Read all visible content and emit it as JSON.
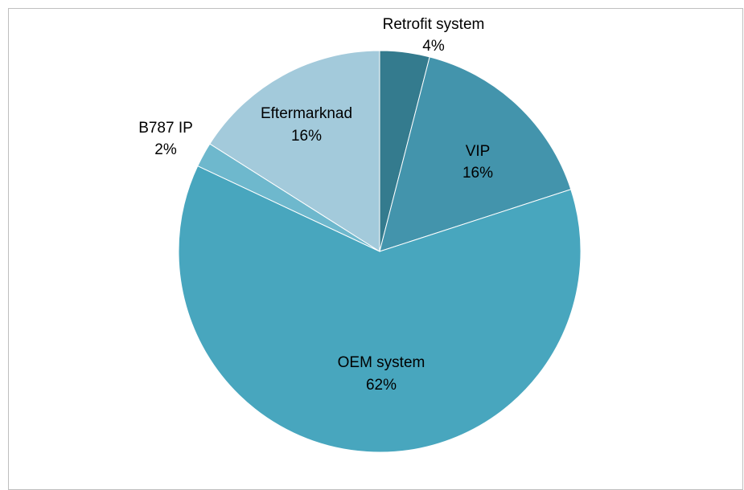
{
  "chart_data": {
    "type": "pie",
    "title": "",
    "slices": [
      {
        "label": "Retrofit system",
        "percent_label": "4%",
        "value": 4,
        "color": "#347B8E"
      },
      {
        "label": "VIP",
        "percent_label": "16%",
        "value": 16,
        "color": "#4394AC"
      },
      {
        "label": "OEM system",
        "percent_label": "62%",
        "value": 62,
        "color": "#48A6BE"
      },
      {
        "label": "B787 IP",
        "percent_label": "2%",
        "value": 2,
        "color": "#6EB8CD"
      },
      {
        "label": "Eftermarknad",
        "percent_label": "16%",
        "value": 16,
        "color": "#A3CADB"
      }
    ],
    "start": "12 o'clock",
    "direction": "clockwise",
    "legend": "none",
    "data_labels": "category name and percentage"
  }
}
